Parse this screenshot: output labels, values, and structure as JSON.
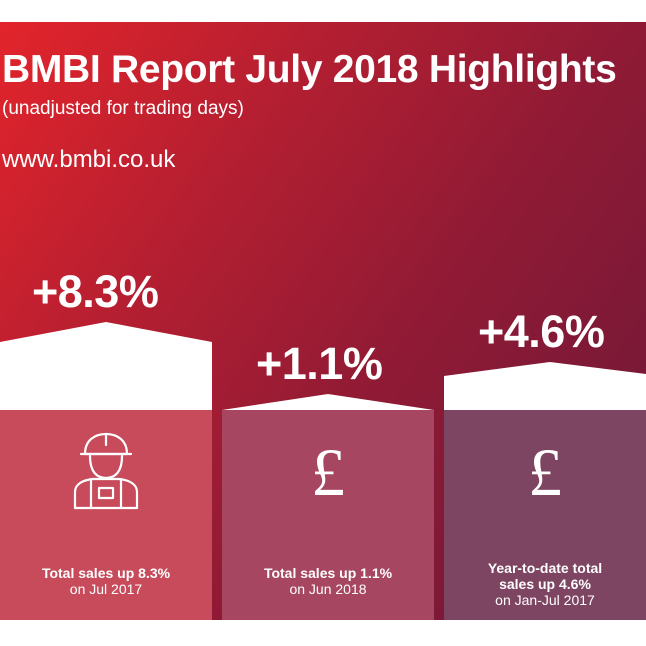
{
  "header": {
    "title": "BMBI Report July 2018 Highlights",
    "subtitle": "(unadjusted for trading days)",
    "url": "www.bmbi.co.uk"
  },
  "colors": {
    "gradient_start": "#e3242b",
    "gradient_end": "#6b1838",
    "panel_1": "#c74b5a",
    "panel_2": "#a64660",
    "panel_3": "#7d4562",
    "text": "#ffffff"
  },
  "stats": [
    {
      "value": "+8.3%",
      "icon": "worker-icon",
      "line1": "Total sales up 8.3%",
      "line2": "on Jul 2017"
    },
    {
      "value": "+1.1%",
      "icon": "pound-icon",
      "symbol": "£",
      "line1": "Total sales up 1.1%",
      "line2": "on Jun 2018"
    },
    {
      "value": "+4.6%",
      "icon": "pound-icon",
      "symbol": "£",
      "line1": "Year-to-date total",
      "line1b": "sales up 4.6%",
      "line2": "on Jan-Jul 2017"
    }
  ]
}
